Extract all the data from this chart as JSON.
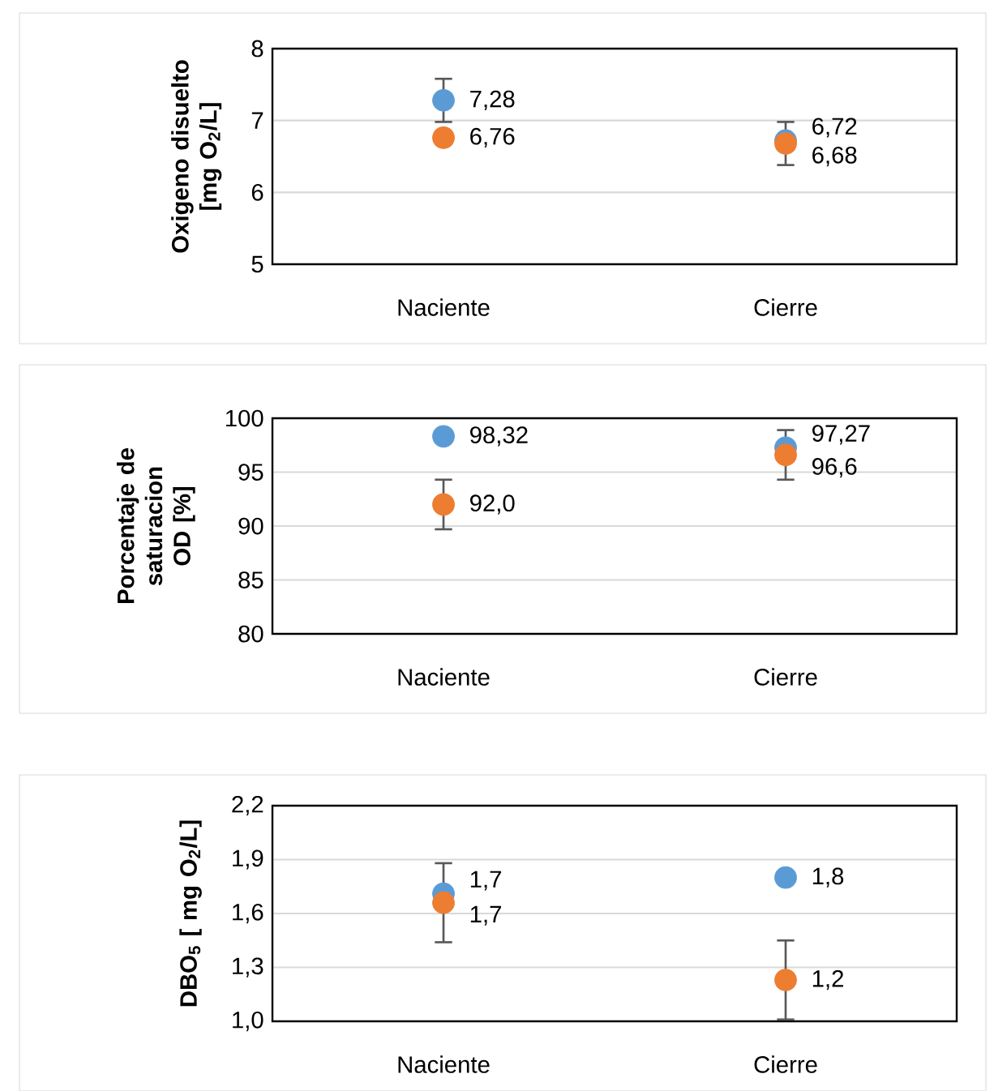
{
  "chart_data": [
    {
      "type": "scatter",
      "ylabel": "**Oxigeno  disuelto [mg O$_{2}$/L]**",
      "categories": [
        "Naciente",
        "Cierre"
      ],
      "ylim": [
        5,
        8
      ],
      "yticks": [
        5,
        6,
        7,
        8
      ],
      "grid": "y",
      "series": [
        {
          "color": "#5b9bd5",
          "values": [
            7.28,
            6.72
          ],
          "errors": [
            0.3,
            null
          ],
          "value_labels": [
            "7,28",
            "6,72"
          ]
        },
        {
          "color": "#ed7d31",
          "values": [
            6.76,
            6.68
          ],
          "errors": [
            null,
            0.3
          ],
          "value_labels": [
            "6,76",
            "6,68"
          ]
        }
      ]
    },
    {
      "type": "scatter",
      "ylabel": "**Porcentaje de saturacion OD [%]**",
      "categories": [
        "Naciente",
        "Cierre"
      ],
      "ylim": [
        80,
        100
      ],
      "yticks": [
        80,
        85,
        90,
        95,
        100
      ],
      "grid": "y",
      "series": [
        {
          "color": "#5b9bd5",
          "values": [
            98.32,
            97.27
          ],
          "errors": [
            null,
            null
          ],
          "value_labels": [
            "98,32",
            "97,27"
          ]
        },
        {
          "color": "#ed7d31",
          "values": [
            92.0,
            96.6
          ],
          "errors": [
            2.3,
            2.3
          ],
          "value_labels": [
            "92,0",
            "96,6"
          ]
        }
      ]
    },
    {
      "type": "scatter",
      "ylabel": "**DBO$_{5}$ [ mg O$_{2}$/L]**",
      "categories": [
        "Naciente",
        "Cierre"
      ],
      "ylim": [
        1.0,
        2.2
      ],
      "yticks": [
        {
          "value": 1.0,
          "label": "1,0"
        },
        {
          "value": 1.3,
          "label": "1,3"
        },
        {
          "value": 1.6,
          "label": "1,6"
        },
        {
          "value": 1.9,
          "label": "1,9"
        },
        {
          "value": 2.2,
          "label": "2,2"
        }
      ],
      "grid": "y",
      "series": [
        {
          "color": "#5b9bd5",
          "values": [
            1.71,
            1.8
          ],
          "errors": [
            null,
            null
          ],
          "value_labels": [
            "1,7",
            "1,8"
          ]
        },
        {
          "color": "#ed7d31",
          "values": [
            1.66,
            1.23
          ],
          "errors": [
            0.22,
            0.22
          ],
          "value_labels": [
            "1,7",
            "1,2"
          ]
        }
      ]
    }
  ]
}
